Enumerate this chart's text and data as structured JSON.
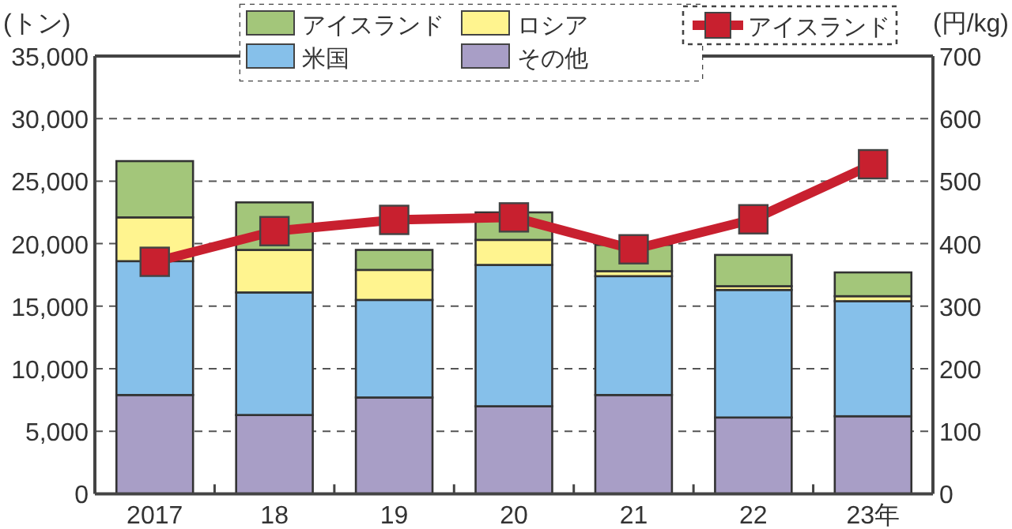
{
  "chart_data": {
    "type": "bar",
    "stacked": true,
    "categories": [
      "2017",
      "18",
      "19",
      "20",
      "21",
      "22",
      "23年"
    ],
    "ylabel": "(トン)",
    "y2label": "(円/kg)",
    "ylim": [
      0,
      35000
    ],
    "yticks": [
      0,
      {
        "value": 5000,
        "label": "5,000"
      },
      {
        "value": 10000,
        "label": "10,000"
      },
      {
        "value": 15000,
        "label": "15,000"
      },
      {
        "value": 20000,
        "label": "20,000"
      },
      {
        "value": 25000,
        "label": "25,000"
      },
      {
        "value": 30000,
        "label": "30,000"
      },
      {
        "value": 35000,
        "label": "35,000"
      }
    ],
    "y2lim": [
      0,
      700
    ],
    "y2ticks": [
      0,
      100,
      200,
      300,
      400,
      500,
      600,
      700
    ],
    "grid": "y",
    "legend": "top",
    "series": [
      {
        "name": "その他",
        "color": "#a89ec6",
        "values": [
          7900,
          6300,
          7700,
          7000,
          7900,
          6100,
          6200
        ]
      },
      {
        "name": "米国",
        "color": "#86c0ea",
        "values": [
          10700,
          9800,
          7800,
          11300,
          9500,
          10200,
          9200
        ]
      },
      {
        "name": "ロシア",
        "color": "#fff48f",
        "values": [
          3500,
          3400,
          2400,
          2000,
          400,
          300,
          400
        ]
      },
      {
        "name": "アイスランド",
        "color": "#a3c67a",
        "values": [
          4500,
          3800,
          1600,
          2200,
          2100,
          2500,
          1900
        ]
      },
      {
        "name": "アイスランド",
        "color": "#c8202f",
        "type": "line",
        "axis": "y2",
        "marker": "square",
        "values": [
          371,
          420,
          438,
          442,
          391,
          439,
          527
        ]
      }
    ]
  }
}
